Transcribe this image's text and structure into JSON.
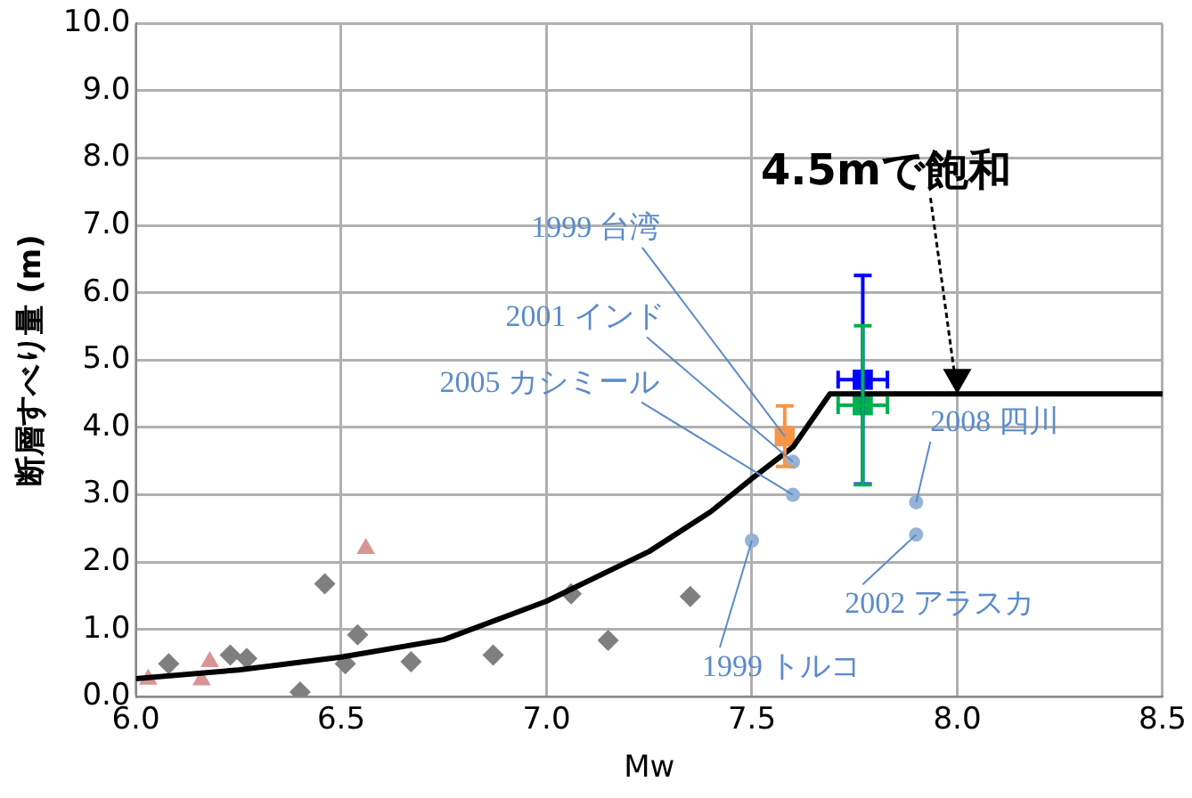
{
  "chart_data": {
    "type": "scatter",
    "xlabel": "Mw",
    "ylabel": "断層すべり量 (m)",
    "xlim": [
      6.0,
      8.5
    ],
    "ylim": [
      0,
      10
    ],
    "xticks": [
      {
        "value": 6.0,
        "label": "6.0"
      },
      {
        "value": 6.5,
        "label": "6.5"
      },
      {
        "value": 7.0,
        "label": "7.0"
      },
      {
        "value": 7.5,
        "label": "7.5"
      },
      {
        "value": 8.0,
        "label": "8.0"
      },
      {
        "value": 8.5,
        "label": "8.5"
      }
    ],
    "yticks": [
      {
        "value": 0,
        "label": "0.0"
      },
      {
        "value": 1,
        "label": "1.0"
      },
      {
        "value": 2,
        "label": "2.0"
      },
      {
        "value": 3,
        "label": "3.0"
      },
      {
        "value": 4,
        "label": "4.0"
      },
      {
        "value": 5,
        "label": "5.0"
      },
      {
        "value": 6,
        "label": "6.0"
      },
      {
        "value": 7,
        "label": "7.0"
      },
      {
        "value": 8,
        "label": "8.0"
      },
      {
        "value": 9,
        "label": "9.0"
      },
      {
        "value": 10,
        "label": "10.0"
      }
    ],
    "grid": true,
    "legend": false,
    "series": [
      {
        "type": "line",
        "color": "#000000",
        "marker": "none",
        "x": [
          6.0,
          6.25,
          6.5,
          6.75,
          7.0,
          7.25,
          7.4,
          7.5,
          7.6,
          7.69,
          8.0,
          8.5
        ],
        "values": [
          0.27,
          0.4,
          0.59,
          0.85,
          1.42,
          2.16,
          2.75,
          3.24,
          3.71,
          4.5,
          4.5,
          4.5
        ]
      },
      {
        "color": "#7f7f7f",
        "marker": "diamond",
        "x": [
          6.08,
          6.23,
          6.27,
          6.4,
          6.46,
          6.51,
          6.54,
          6.67,
          6.87,
          7.06,
          7.15,
          7.35
        ],
        "values": [
          0.49,
          0.62,
          0.57,
          0.07,
          1.68,
          0.49,
          0.92,
          0.52,
          0.62,
          1.53,
          0.84,
          1.49
        ]
      },
      {
        "color": "#d99594",
        "marker": "triangle",
        "x": [
          6.03,
          6.16,
          6.18,
          6.56
        ],
        "values": [
          0.26,
          0.25,
          0.52,
          2.2
        ]
      },
      {
        "color": "#95b3d7",
        "marker": "circle",
        "x": [
          7.6,
          7.6,
          7.5,
          7.9,
          7.9
        ],
        "values": [
          3.49,
          3.0,
          2.32,
          2.89,
          2.41
        ]
      },
      {
        "color": "#f79646",
        "marker": "square",
        "x": [
          7.58
        ],
        "values": [
          3.87
        ],
        "errors": [
          0.45
        ]
      },
      {
        "color": "#0000ff",
        "marker": "square",
        "x": [
          7.77
        ],
        "values": [
          4.71
        ],
        "errors": [
          1.55
        ],
        "xerrors": [
          0.06
        ]
      },
      {
        "color": "#00b050",
        "marker": "square",
        "x": [
          7.77
        ],
        "values": [
          4.33
        ],
        "errors": [
          1.18
        ],
        "xerrors": [
          0.06
        ]
      }
    ],
    "annotations": [
      {
        "text": "1999 台湾",
        "x": 7.58,
        "y": 3.87
      },
      {
        "text": "2001 インド",
        "x": 7.6,
        "y": 3.49
      },
      {
        "text": "2005 カシミール",
        "x": 7.6,
        "y": 3.0
      },
      {
        "text": "2008 四川",
        "x": 7.9,
        "y": 2.89
      },
      {
        "text": "2002 アラスカ",
        "x": 7.9,
        "y": 2.41
      },
      {
        "text": "1999 トルコ",
        "x": 7.5,
        "y": 2.32
      },
      {
        "text": "4.5mで飽和",
        "x": 8.0,
        "y": 4.5
      }
    ]
  }
}
